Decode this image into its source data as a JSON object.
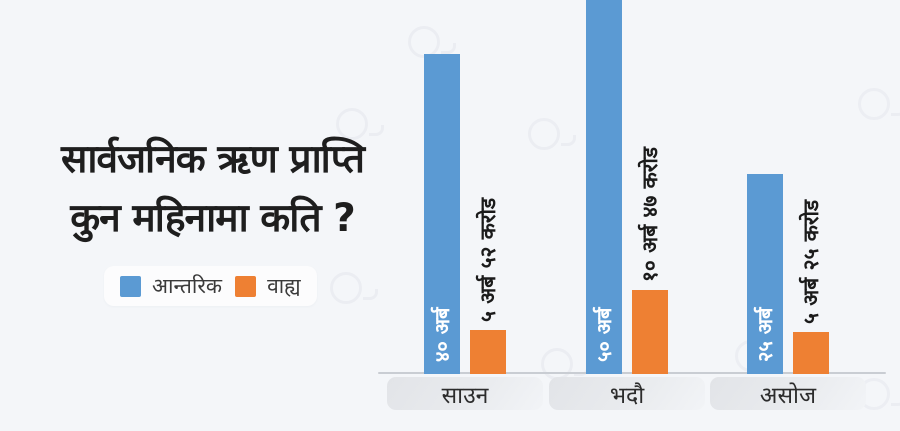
{
  "title": {
    "line1": "सार्वजनिक ऋण प्राप्ति",
    "line2": "कुन महिनामा कति ?"
  },
  "chart_data": {
    "type": "bar",
    "title": "सार्वजनिक ऋण प्राप्ति कुन महिनामा कति ?",
    "categories": [
      "साउन",
      "भदौ",
      "असोज"
    ],
    "series": [
      {
        "name": "आन्तरिक",
        "color": "#5b9ad3",
        "values": [
          40,
          50,
          25
        ],
        "value_labels": [
          "४० अर्ब",
          "५० अर्ब",
          "२५ अर्ब"
        ],
        "label_position": "inside-bottom",
        "label_color": "#ffffff"
      },
      {
        "name": "वाह्य",
        "color": "#ee8033",
        "values": [
          5.52,
          10.47,
          5.25
        ],
        "value_labels": [
          "५ अर्ब ५२ करोड",
          "१० अर्ब ४७ करोड",
          "५ अर्ब २५ करोड"
        ],
        "label_position": "above",
        "label_color": "#1b1b1b"
      }
    ],
    "unit": "अर्ब (NPR billions)",
    "ylim": [
      0,
      50
    ],
    "grid": false,
    "legend_position": "left-middle",
    "note": "आन्तरिक bar for भदौ is clipped at the top edge of the image"
  },
  "colors": {
    "background": "#f4f6f9",
    "internal": "#5b9ad3",
    "external": "#ee8033",
    "axis_line": "#c9cdd3",
    "title_text": "#1e1e1e",
    "category_band": "#e2e4e8",
    "legend_background": "#fcfcfd"
  }
}
